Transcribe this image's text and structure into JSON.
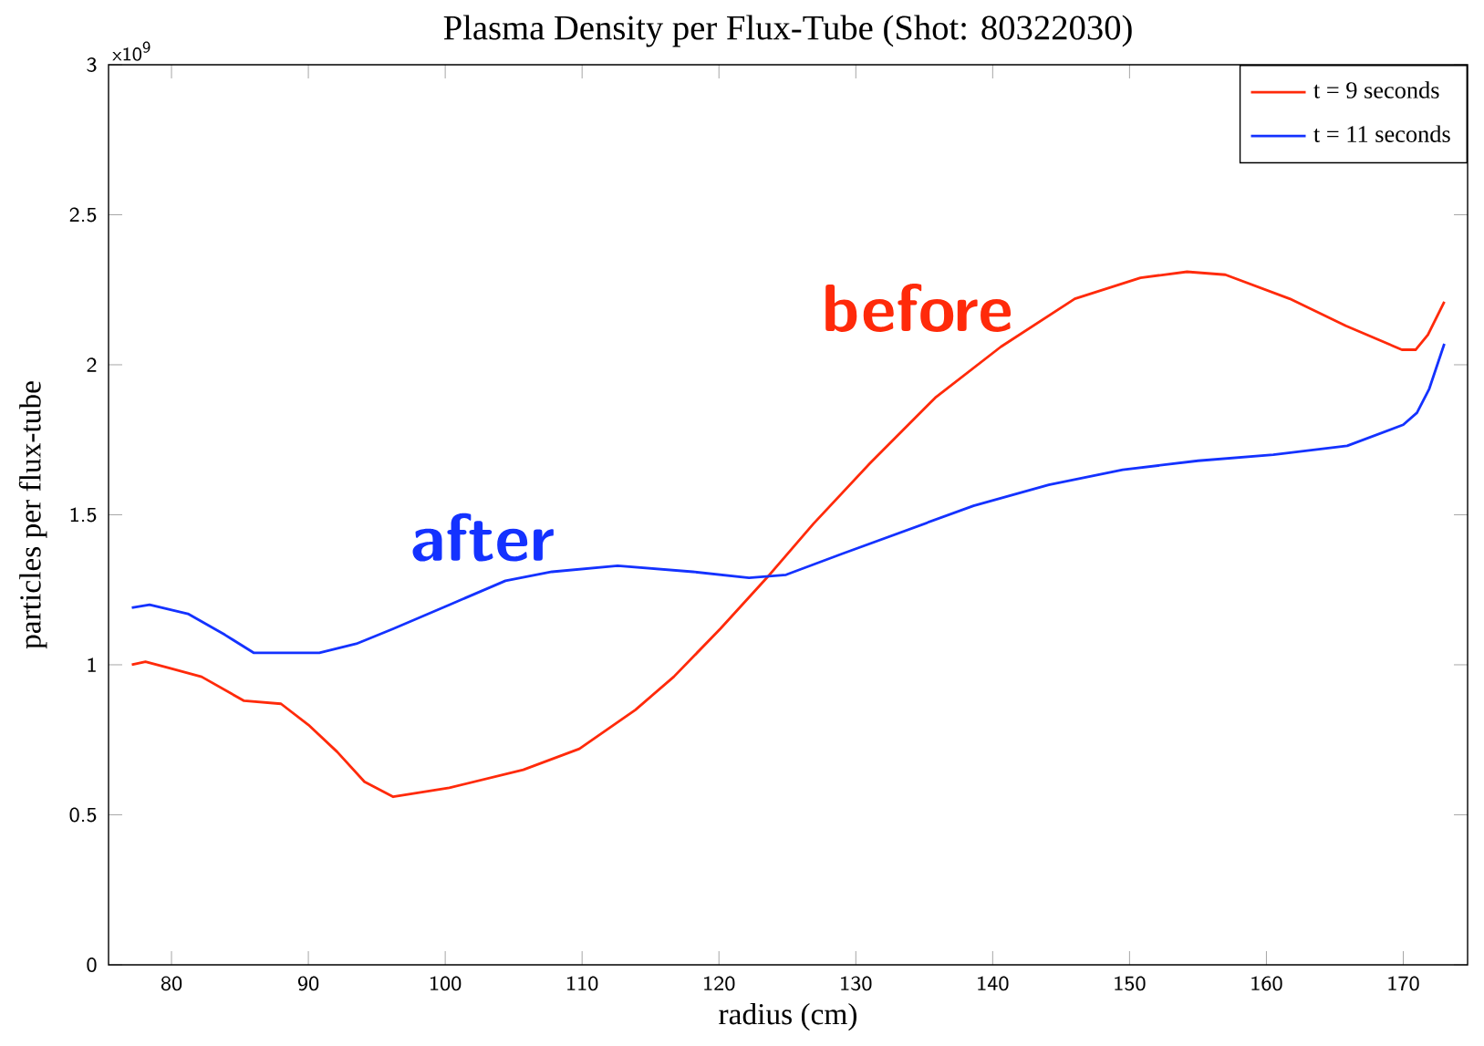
{
  "chart_data": {
    "type": "line",
    "title": "Plasma Density per Flux-Tube (Shot: 80322030)",
    "xlabel": "radius (cm)",
    "ylabel": "particles per flux-tube",
    "xlim": [
      75.4,
      174.7
    ],
    "ylim": [
      0,
      3
    ],
    "xticks": [
      80,
      90,
      100,
      110,
      120,
      130,
      140,
      150,
      160,
      170
    ],
    "yticks": [
      0,
      0.5,
      1,
      1.5,
      2,
      2.5,
      3
    ],
    "grid": false,
    "legend": "top right",
    "annotations": [
      "before",
      "after",
      "x10$^{9}$"
    ],
    "series": [
      {
        "name": "t = 9 seconds",
        "color": "#ff2a0a",
        "x": [
          77.1,
          78.1,
          79.8,
          82.2,
          85.3,
          88.0,
          90.0,
          92.1,
          94.1,
          96.2,
          100.3,
          105.7,
          109.8,
          113.9,
          116.7,
          120.1,
          123.5,
          126.9,
          131.0,
          135.8,
          140.6,
          146.0,
          150.8,
          154.2,
          157.0,
          161.7,
          165.8,
          169.9,
          170.9,
          171.8,
          173.0
        ],
        "values": [
          1.0,
          1.01,
          0.99,
          0.96,
          0.88,
          0.87,
          0.8,
          0.71,
          0.61,
          0.56,
          0.59,
          0.65,
          0.72,
          0.85,
          0.96,
          1.12,
          1.29,
          1.47,
          1.67,
          1.89,
          2.06,
          2.22,
          2.29,
          2.31,
          2.3,
          2.22,
          2.13,
          2.05,
          2.05,
          2.1,
          2.21
        ]
      },
      {
        "name": "t = 11 seconds",
        "color": "#1432ff",
        "x": [
          77.1,
          78.4,
          81.2,
          83.9,
          86.0,
          88.0,
          90.8,
          93.5,
          96.2,
          100.3,
          104.4,
          107.8,
          112.6,
          118.1,
          122.2,
          124.9,
          129.0,
          133.8,
          138.6,
          144.1,
          149.5,
          155.0,
          160.5,
          165.9,
          170.0,
          171.0,
          171.9,
          173.0
        ],
        "values": [
          1.19,
          1.2,
          1.17,
          1.1,
          1.04,
          1.04,
          1.04,
          1.07,
          1.12,
          1.2,
          1.28,
          1.31,
          1.33,
          1.31,
          1.29,
          1.3,
          1.37,
          1.45,
          1.53,
          1.6,
          1.65,
          1.68,
          1.7,
          1.73,
          1.8,
          1.84,
          1.92,
          2.07
        ]
      }
    ]
  }
}
